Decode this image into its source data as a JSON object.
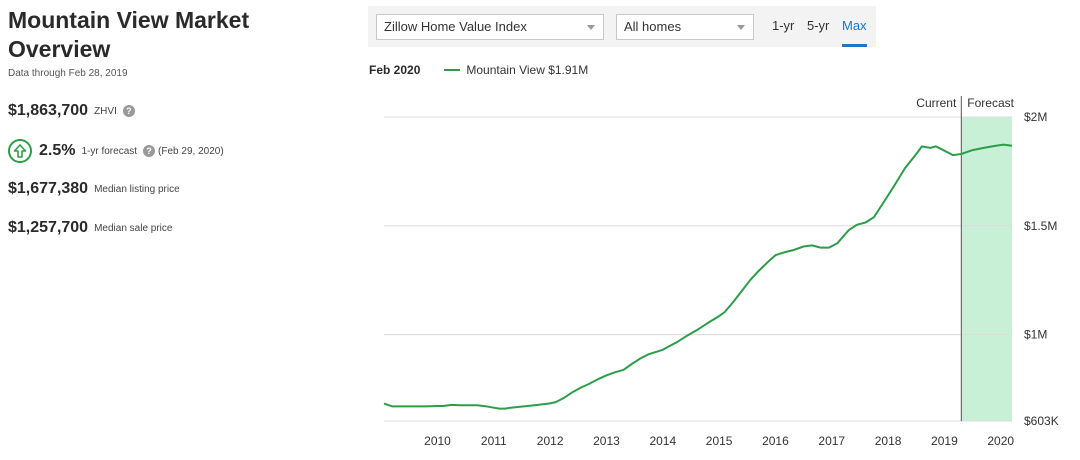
{
  "header": {
    "title_line1": "Mountain View Market",
    "title_line2": "Overview",
    "data_through": "Data through Feb 28, 2019"
  },
  "metrics": {
    "zhvi_value": "$1,863,700",
    "zhvi_label": "ZHVI",
    "forecast_value": "2.5%",
    "forecast_label": "1-yr forecast",
    "forecast_date": "(Feb 29, 2020)",
    "listing_value": "$1,677,380",
    "listing_label": "Median listing price",
    "sale_value": "$1,257,700",
    "sale_label": "Median sale price",
    "help_glyph": "?"
  },
  "toolbar": {
    "index_select": "Zillow Home Value Index",
    "home_type_select": "All homes",
    "ranges": [
      "1-yr",
      "5-yr",
      "Max"
    ],
    "active_range": "Max"
  },
  "legend": {
    "month": "Feb 2020",
    "series_label": "Mountain View $1.91M"
  },
  "colors": {
    "line": "#2e9d4a",
    "forecast_fill": "#c8f0d6",
    "accent": "#1a75cf"
  },
  "chart_data": {
    "type": "line",
    "y_ticks": [
      "$2M",
      "$1.5M",
      "$1M",
      "$603K"
    ],
    "y_tick_values": [
      2000000,
      1500000,
      1000000,
      603000
    ],
    "ylim": [
      603000,
      2000000
    ],
    "x_ticks": [
      "2010",
      "2011",
      "2012",
      "2013",
      "2014",
      "2015",
      "2016",
      "2017",
      "2018",
      "2019",
      "2020"
    ],
    "xlim": [
      2009.05,
      2020.2
    ],
    "current_label": "Current",
    "forecast_label": "Forecast",
    "forecast_start": 2019.3,
    "grid": true,
    "series": [
      {
        "name": "Mountain View",
        "x": [
          2009.05,
          2009.2,
          2009.4,
          2009.6,
          2009.8,
          2010.0,
          2010.1,
          2010.25,
          2010.4,
          2010.5,
          2010.7,
          2010.85,
          2011.0,
          2011.1,
          2011.2,
          2011.3,
          2011.4,
          2011.6,
          2011.8,
          2012.0,
          2012.1,
          2012.25,
          2012.4,
          2012.55,
          2012.7,
          2012.85,
          2013.0,
          2013.15,
          2013.3,
          2013.45,
          2013.6,
          2013.75,
          2013.9,
          2014.0,
          2014.1,
          2014.25,
          2014.4,
          2014.6,
          2014.8,
          2015.0,
          2015.1,
          2015.25,
          2015.4,
          2015.55,
          2015.7,
          2015.85,
          2016.0,
          2016.15,
          2016.3,
          2016.5,
          2016.65,
          2016.8,
          2016.95,
          2017.1,
          2017.3,
          2017.45,
          2017.6,
          2017.75,
          2017.9,
          2018.1,
          2018.3,
          2018.5,
          2018.6,
          2018.75,
          2018.85,
          2019.0,
          2019.15,
          2019.3,
          2019.5,
          2019.7,
          2019.9,
          2020.05,
          2020.2
        ],
        "y": [
          683000,
          670000,
          670000,
          670000,
          670000,
          672000,
          672000,
          677000,
          675000,
          675000,
          675000,
          671000,
          664000,
          660000,
          660000,
          664000,
          667000,
          672000,
          678000,
          684000,
          690000,
          710000,
          736000,
          757000,
          775000,
          795000,
          813000,
          827000,
          838000,
          865000,
          890000,
          910000,
          922000,
          930000,
          945000,
          965000,
          990000,
          1020000,
          1054000,
          1085000,
          1104000,
          1150000,
          1200000,
          1250000,
          1292000,
          1330000,
          1365000,
          1378000,
          1387000,
          1405000,
          1410000,
          1400000,
          1400000,
          1420000,
          1480000,
          1505000,
          1515000,
          1540000,
          1600000,
          1680000,
          1765000,
          1830000,
          1865000,
          1858000,
          1865000,
          1845000,
          1825000,
          1830000,
          1848000,
          1858000,
          1867000,
          1873000,
          1868000
        ]
      }
    ]
  }
}
